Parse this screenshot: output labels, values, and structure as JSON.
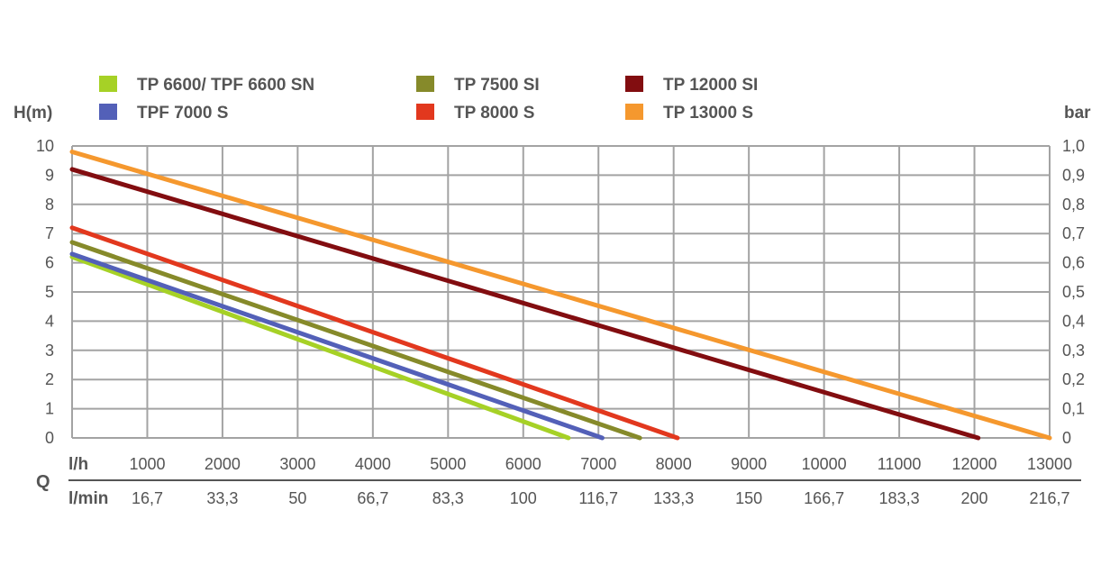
{
  "chart_data": {
    "type": "line",
    "title": "",
    "ylabel_left": "H(m)",
    "ylabel_right": "bar",
    "xlabel": "Q",
    "x_row_lh_label": "l/h",
    "x_row_lmin_label": "l/min",
    "xlim": [
      0,
      13000
    ],
    "ylim": [
      0,
      10
    ],
    "grid": true,
    "legend_position": "top",
    "y_ticks_left": [
      "0",
      "1",
      "2",
      "3",
      "4",
      "5",
      "6",
      "7",
      "8",
      "9",
      "10"
    ],
    "y_ticks_right": [
      "0",
      "0,1",
      "0,2",
      "0,3",
      "0,4",
      "0,5",
      "0,6",
      "0,7",
      "0,8",
      "0,9",
      "1,0"
    ],
    "x_ticks_lh": [
      "1000",
      "2000",
      "3000",
      "4000",
      "5000",
      "6000",
      "7000",
      "8000",
      "9000",
      "10000",
      "11000",
      "12000",
      "13000"
    ],
    "x_ticks_lmin": [
      "16,7",
      "33,3",
      "50",
      "66,7",
      "83,3",
      "100",
      "116,7",
      "133,3",
      "150",
      "166,7",
      "183,3",
      "200",
      "216,7"
    ],
    "series": [
      {
        "name": "TP 6600/ TPF 6600 SN",
        "color": "#a6d126",
        "x": [
          0,
          6600
        ],
        "values": [
          6.2,
          0
        ]
      },
      {
        "name": "TPF 7000 S",
        "color": "#5360b8",
        "x": [
          0,
          7050
        ],
        "values": [
          6.3,
          0
        ]
      },
      {
        "name": "TP 7500 SI",
        "color": "#868a2a",
        "x": [
          0,
          7550
        ],
        "values": [
          6.7,
          0
        ]
      },
      {
        "name": "TP 8000 S",
        "color": "#e2381e",
        "x": [
          0,
          8050
        ],
        "values": [
          7.2,
          0
        ]
      },
      {
        "name": "TP 12000 SI",
        "color": "#820d10",
        "x": [
          0,
          12050
        ],
        "values": [
          9.2,
          0
        ]
      },
      {
        "name": "TP 13000 S",
        "color": "#f5982e",
        "x": [
          0,
          13000
        ],
        "values": [
          9.8,
          0
        ]
      }
    ],
    "legend_order": [
      0,
      2,
      4,
      1,
      3,
      5
    ]
  },
  "colors": {
    "grid": "#a3a3a3",
    "text": "#555555",
    "axis_rule": "#555555"
  }
}
